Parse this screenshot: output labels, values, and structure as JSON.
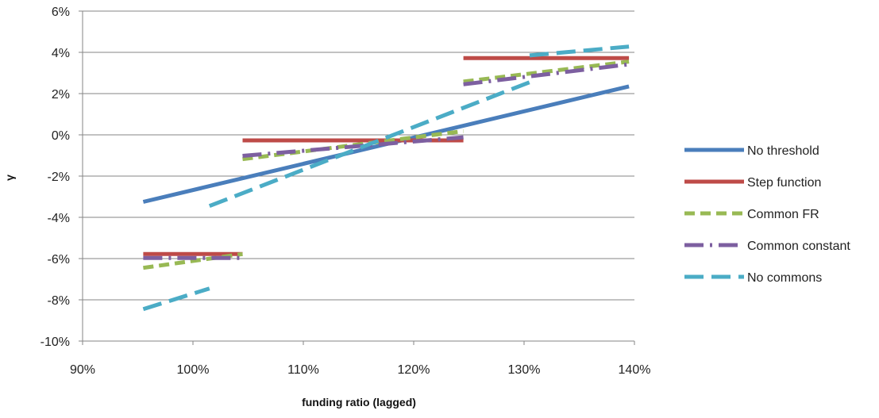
{
  "chart_data": {
    "type": "line",
    "title": "",
    "xlabel": "funding ratio (lagged)",
    "ylabel": "γ",
    "xlim": [
      0.9,
      1.4
    ],
    "ylim": [
      -0.1,
      0.06
    ],
    "x_ticks": [
      0.9,
      1.0,
      1.1,
      1.2,
      1.3,
      1.4
    ],
    "x_tick_labels": [
      "90%",
      "100%",
      "110%",
      "120%",
      "130%",
      "140%"
    ],
    "y_ticks": [
      0.06,
      0.04,
      0.02,
      0.0,
      -0.02,
      -0.04,
      -0.06,
      -0.08,
      -0.1
    ],
    "y_tick_labels": [
      "6%",
      "4%",
      "2%",
      "0%",
      "-2%",
      "-4%",
      "-6%",
      "-8%",
      "-10%"
    ],
    "grid": "horizontal",
    "legend_position": "right",
    "series": [
      {
        "name": "No threshold",
        "color": "#4a7ebb",
        "dash": "solid",
        "segments": [
          [
            [
              0.955,
              -0.0325
            ],
            [
              1.395,
              0.0235
            ]
          ]
        ]
      },
      {
        "name": "Step function",
        "color": "#be4b48",
        "dash": "solid",
        "segments": [
          [
            [
              0.955,
              -0.0578
            ],
            [
              1.045,
              -0.0578
            ]
          ],
          [
            [
              1.045,
              -0.0027
            ],
            [
              1.245,
              -0.0027
            ]
          ],
          [
            [
              1.245,
              0.0372
            ],
            [
              1.395,
              0.0372
            ]
          ]
        ]
      },
      {
        "name": "Common FR",
        "color": "#98b954",
        "dash": "dash",
        "segments": [
          [
            [
              0.955,
              -0.0645
            ],
            [
              1.045,
              -0.0578
            ]
          ],
          [
            [
              1.045,
              -0.0118
            ],
            [
              1.245,
              0.0018
            ]
          ],
          [
            [
              1.245,
              0.0258
            ],
            [
              1.395,
              0.0355
            ]
          ]
        ]
      },
      {
        "name": "Common constant",
        "color": "#7d5fa0",
        "dash": "longdashdot",
        "segments": [
          [
            [
              0.955,
              -0.0597
            ],
            [
              1.045,
              -0.0597
            ]
          ],
          [
            [
              1.045,
              -0.0102
            ],
            [
              1.245,
              -0.0012
            ]
          ],
          [
            [
              1.245,
              0.0245
            ],
            [
              1.395,
              0.0342
            ]
          ]
        ]
      },
      {
        "name": "No commons",
        "color": "#4bacc6",
        "dash": "longdash",
        "segments": [
          [
            [
              0.955,
              -0.0845
            ],
            [
              1.015,
              -0.0745
            ]
          ],
          [
            [
              1.015,
              -0.0345
            ],
            [
              1.305,
              0.0255
            ]
          ],
          [
            [
              1.305,
              0.0385
            ],
            [
              1.395,
              0.0428
            ]
          ]
        ]
      }
    ]
  }
}
